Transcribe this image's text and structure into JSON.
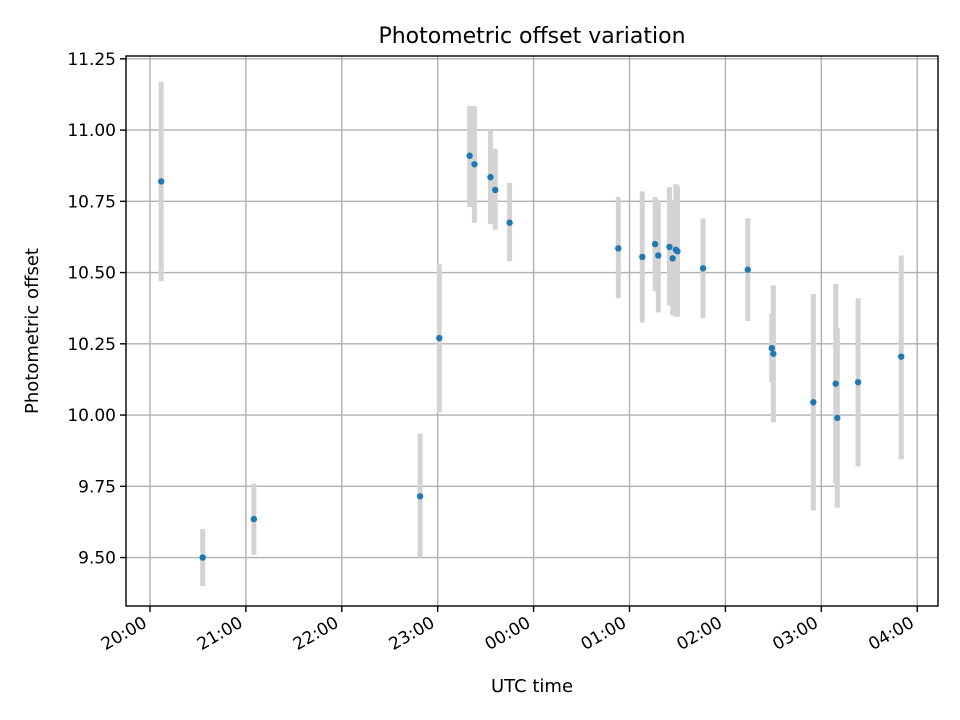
{
  "chart_data": {
    "type": "scatter",
    "title": "Photometric offset variation",
    "xlabel": "UTC time",
    "ylabel": "Photometric offset",
    "x_ticks": [
      "20:00",
      "21:00",
      "22:00",
      "23:00",
      "00:00",
      "01:00",
      "02:00",
      "03:00",
      "04:00"
    ],
    "y_ticks": [
      "9.50",
      "9.75",
      "10.00",
      "10.25",
      "10.50",
      "10.75",
      "11.00",
      "11.25"
    ],
    "xlim": [
      "19:45",
      "04:13"
    ],
    "ylim": [
      9.33,
      11.26
    ],
    "grid": true,
    "colors": {
      "points": "#1f77b4",
      "error_bars": "#d3d3d3"
    },
    "points": [
      {
        "t": "20:07",
        "y": 10.82,
        "lo": 10.47,
        "hi": 11.17
      },
      {
        "t": "20:33",
        "y": 9.5,
        "lo": 9.4,
        "hi": 9.6
      },
      {
        "t": "21:05",
        "y": 9.635,
        "lo": 9.51,
        "hi": 9.76
      },
      {
        "t": "22:49",
        "y": 9.715,
        "lo": 9.5,
        "hi": 9.935
      },
      {
        "t": "23:01",
        "y": 10.27,
        "lo": 10.01,
        "hi": 10.53
      },
      {
        "t": "23:20",
        "y": 10.91,
        "lo": 10.73,
        "hi": 11.085
      },
      {
        "t": "23:23",
        "y": 10.88,
        "lo": 10.675,
        "hi": 11.085
      },
      {
        "t": "23:33",
        "y": 10.835,
        "lo": 10.67,
        "hi": 11.0
      },
      {
        "t": "23:36",
        "y": 10.79,
        "lo": 10.65,
        "hi": 10.935
      },
      {
        "t": "23:45",
        "y": 10.675,
        "lo": 10.54,
        "hi": 10.815
      },
      {
        "t": "00:53",
        "y": 10.585,
        "lo": 10.41,
        "hi": 10.765
      },
      {
        "t": "01:08",
        "y": 10.555,
        "lo": 10.325,
        "hi": 10.785
      },
      {
        "t": "01:16",
        "y": 10.6,
        "lo": 10.435,
        "hi": 10.765
      },
      {
        "t": "01:18",
        "y": 10.56,
        "lo": 10.36,
        "hi": 10.755
      },
      {
        "t": "01:25",
        "y": 10.59,
        "lo": 10.385,
        "hi": 10.8
      },
      {
        "t": "01:27",
        "y": 10.55,
        "lo": 10.35,
        "hi": 10.755
      },
      {
        "t": "01:29",
        "y": 10.58,
        "lo": 10.345,
        "hi": 10.81
      },
      {
        "t": "01:30",
        "y": 10.575,
        "lo": 10.345,
        "hi": 10.805
      },
      {
        "t": "01:46",
        "y": 10.515,
        "lo": 10.34,
        "hi": 10.69
      },
      {
        "t": "02:14",
        "y": 10.51,
        "lo": 10.33,
        "hi": 10.69
      },
      {
        "t": "02:29",
        "y": 10.235,
        "lo": 10.115,
        "hi": 10.355
      },
      {
        "t": "02:30",
        "y": 10.215,
        "lo": 9.975,
        "hi": 10.455
      },
      {
        "t": "02:55",
        "y": 10.045,
        "lo": 9.665,
        "hi": 10.425
      },
      {
        "t": "03:09",
        "y": 10.11,
        "lo": 9.76,
        "hi": 10.46
      },
      {
        "t": "03:10",
        "y": 9.99,
        "lo": 9.675,
        "hi": 10.305
      },
      {
        "t": "03:23",
        "y": 10.115,
        "lo": 9.82,
        "hi": 10.41
      },
      {
        "t": "03:50",
        "y": 10.205,
        "lo": 9.845,
        "hi": 10.56
      }
    ]
  }
}
